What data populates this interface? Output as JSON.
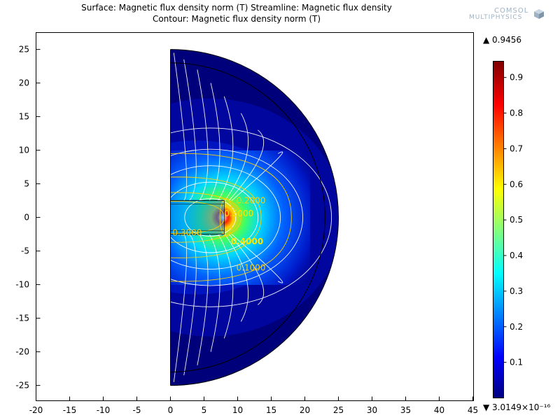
{
  "title_line1": "Surface: Magnetic flux density norm (T)  Streamline: Magnetic flux density",
  "title_line2": "Contour: Magnetic flux density norm (T)",
  "logo": {
    "line1": "COMSOL",
    "line2": "MULTIPHYSICS",
    "icon": "comsol-cube-icon"
  },
  "colors": {
    "surface_low": "#00007a",
    "streamline": "#ffffff",
    "contour": "#ffd000",
    "boundary": "#000000"
  },
  "chart_data": {
    "type": "heatmap",
    "title": "Surface: Magnetic flux density norm (T)  Streamline: Magnetic flux density",
    "subtitle": "Contour: Magnetic flux density norm (T)",
    "xlim": [
      -21,
      45
    ],
    "ylim": [
      -27.5,
      27.5
    ],
    "x_ticks": [
      -20,
      -15,
      -10,
      -5,
      0,
      5,
      10,
      15,
      20,
      25,
      30,
      35,
      40,
      45
    ],
    "y_ticks": [
      25,
      20,
      15,
      10,
      5,
      0,
      -5,
      -10,
      -15,
      -20,
      -25
    ],
    "domain": {
      "shape": "half-disk",
      "outer_radius": 25,
      "inner_radius": 23
    },
    "magnet": {
      "x": [
        0,
        8
      ],
      "y": [
        -2.5,
        2.5
      ]
    },
    "contours": [
      {
        "label": "0.2000",
        "value": 0.2,
        "label_at": [
          9.8,
          2.5
        ]
      },
      {
        "label": "0.1000",
        "value": 0.1,
        "label_at": [
          9.8,
          -7.5
        ]
      },
      {
        "label": "0.3000",
        "value": 0.3,
        "label_at": [
          0.3,
          -2.3
        ]
      },
      {
        "label": "0.4000",
        "value": 0.4,
        "label_at": [
          9.0,
          -3.6
        ]
      },
      {
        "label": "0.5000",
        "value": 0.5,
        "label_at": [
          8.0,
          0.6
        ]
      }
    ],
    "colorbar": {
      "max_label": "0.9456",
      "min_label": "3.0149×10⁻¹⁶",
      "ticks": [
        "0.9",
        "0.8",
        "0.7",
        "0.6",
        "0.5",
        "0.4",
        "0.3",
        "0.2",
        "0.1"
      ],
      "tick_values": [
        0.9,
        0.8,
        0.7,
        0.6,
        0.5,
        0.4,
        0.3,
        0.2,
        0.1
      ],
      "range": [
        0,
        0.9456
      ]
    }
  }
}
